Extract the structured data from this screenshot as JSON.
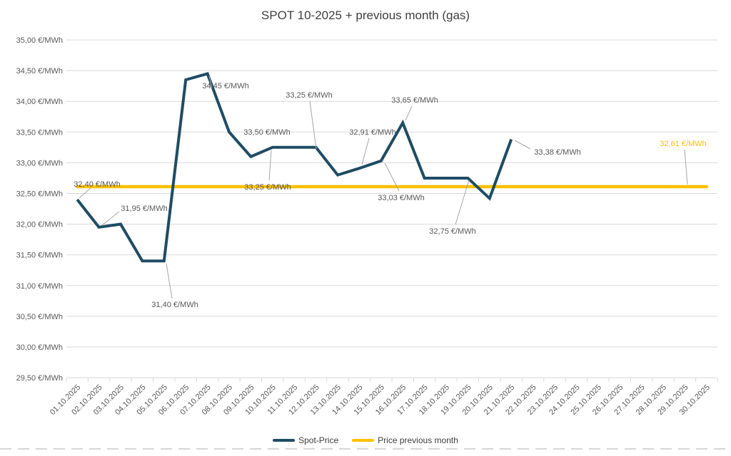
{
  "chart_data": {
    "type": "line",
    "title": "SPOT 10-2025 + previous month (gas)",
    "y_unit": "€/MWh",
    "ylim": [
      29.5,
      35.0
    ],
    "ytick_step": 0.5,
    "grid": "horizontal",
    "legend_position": "bottom",
    "x_categories": [
      "01.10.2025",
      "02.10.2025",
      "03.10.2025",
      "04.10.2025",
      "05.10.2025",
      "06.10.2025",
      "07.10.2025",
      "08.10.2025",
      "09.10.2025",
      "10.10.2025",
      "11.10.2025",
      "12.10.2025",
      "13.10.2025",
      "14.10.2025",
      "15.10.2025",
      "16.10.2025",
      "17.10.2025",
      "18.10.2025",
      "19.10.2025",
      "20.10.2025",
      "21.10.2025",
      "22.10.2025",
      "23.10.2025",
      "24.10.2025",
      "25.10.2025",
      "26.10.2025",
      "27.10.2025",
      "28.10.2025",
      "29.10.2025",
      "30.10.2025"
    ],
    "series": [
      {
        "name": "Spot-Price",
        "color": "#1f4c64",
        "values": [
          32.4,
          31.95,
          32.0,
          31.4,
          31.4,
          34.35,
          34.45,
          33.5,
          33.1,
          33.25,
          33.25,
          33.25,
          32.8,
          32.91,
          33.03,
          33.65,
          32.75,
          32.75,
          32.75,
          32.42,
          33.38
        ]
      },
      {
        "name": "Price previous month",
        "color": "#ffc000",
        "constant_value": 32.61
      }
    ],
    "y_ticks": [
      {
        "value": 35.0,
        "label": "35,00 €/MWh"
      },
      {
        "value": 34.5,
        "label": "34,50 €/MWh"
      },
      {
        "value": 34.0,
        "label": "34,00 €/MWh"
      },
      {
        "value": 33.5,
        "label": "33,50 €/MWh"
      },
      {
        "value": 33.0,
        "label": "33,00 €/MWh"
      },
      {
        "value": 32.5,
        "label": "32,50 €/MWh"
      },
      {
        "value": 32.0,
        "label": "32,00 €/MWh"
      },
      {
        "value": 31.5,
        "label": "31,50 €/MWh"
      },
      {
        "value": 31.0,
        "label": "31,00 €/MWh"
      },
      {
        "value": 30.5,
        "label": "30,50 €/MWh"
      },
      {
        "value": 30.0,
        "label": "30,00 €/MWh"
      },
      {
        "value": 29.5,
        "label": "29,50 €/MWh"
      }
    ],
    "point_labels": [
      {
        "key": "spot-0",
        "text": "32,40 €/MWh"
      },
      {
        "key": "spot-1",
        "text": "31,95 €/MWh"
      },
      {
        "key": "spot-3",
        "text": "31,40 €/MWh"
      },
      {
        "key": "spot-6",
        "text": "34,45 €/MWh"
      },
      {
        "key": "spot-7",
        "text": "33,50 €/MWh"
      },
      {
        "key": "spot-9",
        "text": "33,25 €/MWh"
      },
      {
        "key": "spot-11",
        "text": "33,25 €/MWh"
      },
      {
        "key": "spot-13",
        "text": "32,91 €/MWh"
      },
      {
        "key": "spot-14",
        "text": "33,03 €/MWh"
      },
      {
        "key": "spot-15",
        "text": "33,65 €/MWh"
      },
      {
        "key": "spot-18",
        "text": "32,75 €/MWh"
      },
      {
        "key": "spot-20",
        "text": "33,38 €/MWh"
      },
      {
        "key": "prev",
        "text": "32,61 €/MWh"
      }
    ],
    "colors": {
      "gridline": "#d9d9d9",
      "axis_text": "#595959",
      "leader_line": "#a6a6a6",
      "title_text": "#3f3f3f"
    }
  }
}
